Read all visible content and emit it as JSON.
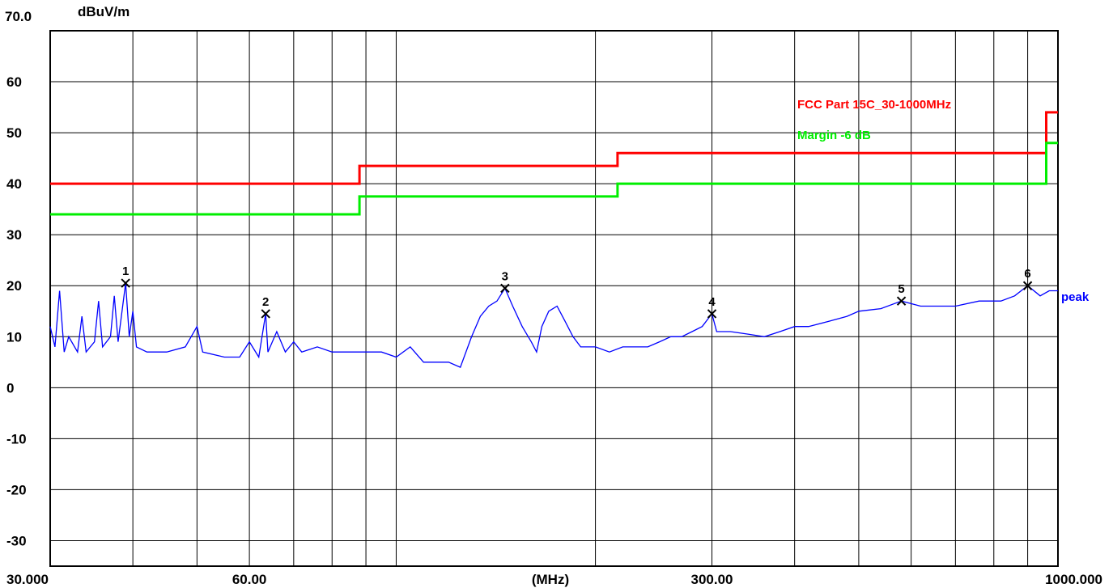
{
  "chart_data": {
    "type": "line",
    "ylabel": "dBuV/m",
    "xlabel": "(MHz)",
    "x_scale": "log",
    "xlim": [
      30,
      1000
    ],
    "ylim": [
      -35,
      70
    ],
    "y_top_label": "70.0",
    "y_ticks": [
      {
        "value": 60,
        "label": "60"
      },
      {
        "value": 50,
        "label": "50"
      },
      {
        "value": 40,
        "label": "40"
      },
      {
        "value": 30,
        "label": "30"
      },
      {
        "value": 20,
        "label": "20"
      },
      {
        "value": 10,
        "label": "10"
      },
      {
        "value": 0,
        "label": "0"
      },
      {
        "value": -10,
        "label": "-10"
      },
      {
        "value": -20,
        "label": "-20"
      },
      {
        "value": -30,
        "label": "-30"
      }
    ],
    "x_tick_labels": [
      {
        "value": 30,
        "label": "30.000"
      },
      {
        "value": 60,
        "label": "60.00"
      },
      {
        "value": 300,
        "label": "300.00"
      },
      {
        "value": 1000,
        "label": "1000.000"
      }
    ],
    "x_grid": [
      40,
      50,
      60,
      70,
      80,
      90,
      100,
      200,
      300,
      400,
      500,
      600,
      700,
      800,
      900
    ],
    "grid": true,
    "series": [
      {
        "name": "FCC Part 15C_30-1000MHz",
        "color": "#ff0000",
        "points": [
          [
            30,
            40
          ],
          [
            88,
            40
          ],
          [
            88,
            43.5
          ],
          [
            216,
            43.5
          ],
          [
            216,
            46
          ],
          [
            960,
            46
          ],
          [
            960,
            54
          ],
          [
            1000,
            54
          ]
        ]
      },
      {
        "name": "Margin -6 dB",
        "color": "#00ee00",
        "points": [
          [
            30,
            34
          ],
          [
            88,
            34
          ],
          [
            88,
            37.5
          ],
          [
            216,
            37.5
          ],
          [
            216,
            40
          ],
          [
            960,
            40
          ],
          [
            960,
            48
          ],
          [
            1000,
            48
          ]
        ]
      },
      {
        "name": "peak",
        "color": "#0000ff",
        "points": [
          [
            30,
            12
          ],
          [
            30.5,
            8
          ],
          [
            31,
            19
          ],
          [
            31.5,
            7
          ],
          [
            32,
            10
          ],
          [
            33,
            7
          ],
          [
            33.5,
            14
          ],
          [
            34,
            7
          ],
          [
            35,
            9
          ],
          [
            35.5,
            17
          ],
          [
            36,
            8
          ],
          [
            37,
            10
          ],
          [
            37.5,
            18
          ],
          [
            38,
            9
          ],
          [
            39,
            20.5
          ],
          [
            39.5,
            10
          ],
          [
            40,
            15
          ],
          [
            40.5,
            8
          ],
          [
            42,
            7
          ],
          [
            45,
            7
          ],
          [
            48,
            8
          ],
          [
            50,
            12
          ],
          [
            51,
            7
          ],
          [
            55,
            6
          ],
          [
            58,
            6
          ],
          [
            60,
            9
          ],
          [
            62,
            6
          ],
          [
            63.5,
            14.5
          ],
          [
            64,
            7
          ],
          [
            66,
            11
          ],
          [
            68,
            7
          ],
          [
            70,
            9
          ],
          [
            72,
            7
          ],
          [
            76,
            8
          ],
          [
            80,
            7
          ],
          [
            85,
            7
          ],
          [
            90,
            7
          ],
          [
            95,
            7
          ],
          [
            100,
            6
          ],
          [
            105,
            8
          ],
          [
            110,
            5
          ],
          [
            115,
            5
          ],
          [
            120,
            5
          ],
          [
            125,
            4
          ],
          [
            130,
            10
          ],
          [
            134,
            14
          ],
          [
            138,
            16
          ],
          [
            142,
            17
          ],
          [
            146,
            19.5
          ],
          [
            150,
            16
          ],
          [
            155,
            12
          ],
          [
            160,
            9
          ],
          [
            163,
            7
          ],
          [
            166,
            12
          ],
          [
            170,
            15
          ],
          [
            175,
            16
          ],
          [
            180,
            13
          ],
          [
            185,
            10
          ],
          [
            190,
            8
          ],
          [
            200,
            8
          ],
          [
            210,
            7
          ],
          [
            220,
            8
          ],
          [
            230,
            8
          ],
          [
            240,
            8
          ],
          [
            250,
            9
          ],
          [
            260,
            10
          ],
          [
            270,
            10
          ],
          [
            280,
            11
          ],
          [
            290,
            12
          ],
          [
            300,
            14.5
          ],
          [
            305,
            11
          ],
          [
            320,
            11
          ],
          [
            340,
            10.5
          ],
          [
            360,
            10
          ],
          [
            380,
            11
          ],
          [
            400,
            12
          ],
          [
            420,
            12
          ],
          [
            450,
            13
          ],
          [
            480,
            14
          ],
          [
            500,
            15
          ],
          [
            540,
            15.5
          ],
          [
            580,
            17
          ],
          [
            620,
            16
          ],
          [
            660,
            16
          ],
          [
            700,
            16
          ],
          [
            760,
            17
          ],
          [
            820,
            17
          ],
          [
            860,
            18
          ],
          [
            900,
            20
          ],
          [
            940,
            18
          ],
          [
            970,
            19
          ],
          [
            1000,
            19
          ]
        ]
      }
    ],
    "legend": [
      {
        "label": "FCC Part 15C_30-1000MHz",
        "color": "#ff0000"
      },
      {
        "label": "Margin -6 dB",
        "color": "#00ee00"
      }
    ],
    "trace_label": "peak",
    "markers": [
      {
        "label": "1",
        "x": 39,
        "y": 20.5
      },
      {
        "label": "2",
        "x": 63.5,
        "y": 14.5
      },
      {
        "label": "3",
        "x": 146,
        "y": 19.5
      },
      {
        "label": "4",
        "x": 300,
        "y": 14.5
      },
      {
        "label": "5",
        "x": 580,
        "y": 17
      },
      {
        "label": "6",
        "x": 900,
        "y": 20
      }
    ]
  }
}
